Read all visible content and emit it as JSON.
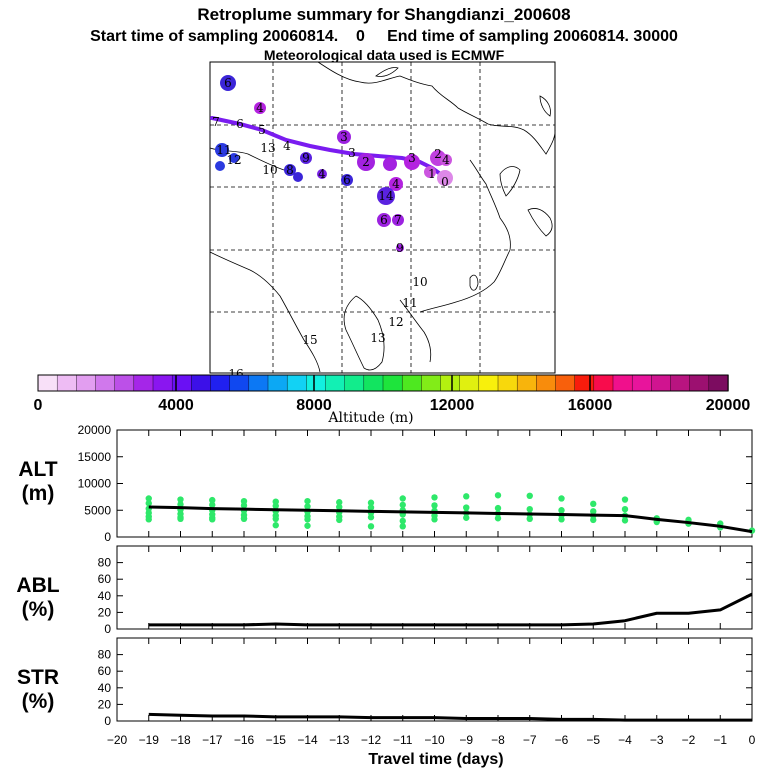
{
  "header": {
    "title": "Retroplume summary for Shangdianzi_200608",
    "subtitle": "Start time of sampling 20060814.    0     End time of sampling 20060814. 30000",
    "met_line": "Meteorological data used is ECMWF"
  },
  "map": {
    "colors": {
      "trajectory": "#7a1cf0",
      "coast": "#000000",
      "grid": "#000000"
    },
    "labels": [
      {
        "t": "6",
        "c": "#3b25d8"
      },
      {
        "t": "4",
        "c": "#b422e0"
      },
      {
        "t": "7",
        "c": "#3b25d8"
      },
      {
        "t": "6",
        "c": "#5a22e0"
      },
      {
        "t": "5",
        "c": "#7a22e8"
      },
      {
        "t": "4",
        "c": "#7a1cf0"
      },
      {
        "t": "3",
        "c": "#9c22e0"
      },
      {
        "t": "11",
        "c": "#2b3ae0"
      },
      {
        "t": "12",
        "c": "#2b3ae0"
      },
      {
        "t": "13",
        "c": "#2b3ae0"
      },
      {
        "t": "9",
        "c": "#5a22e0"
      },
      {
        "t": "3",
        "c": "#9c22e0"
      },
      {
        "t": "2",
        "c": "#a322e0"
      },
      {
        "t": "3",
        "c": "#b422e0"
      },
      {
        "t": "2",
        "c": "#c040e0"
      },
      {
        "t": "1",
        "c": "#cc55e0"
      },
      {
        "t": "0",
        "c": "#dd88e8"
      },
      {
        "t": "4",
        "c": "#b422e0"
      },
      {
        "t": "10",
        "c": "#2b3ae0"
      },
      {
        "t": "8",
        "c": "#3b25d8"
      },
      {
        "t": "4",
        "c": "#7a22e8"
      },
      {
        "t": "6",
        "c": "#3b25d8"
      },
      {
        "t": "14",
        "c": "#5a22e0"
      },
      {
        "t": "4",
        "c": "#b422e0"
      },
      {
        "t": "6",
        "c": "#9c22e0"
      },
      {
        "t": "7",
        "c": "#9c22e0"
      },
      {
        "t": "9",
        "c": "#9c22e0"
      },
      {
        "t": "10",
        "c": "#c040e0"
      },
      {
        "t": "11",
        "c": "#c040e0"
      },
      {
        "t": "12",
        "c": "#c040e0"
      },
      {
        "t": "13",
        "c": "#c040e0"
      },
      {
        "t": "15",
        "c": "#c040e0"
      },
      {
        "t": "16",
        "c": "#c040e0"
      }
    ]
  },
  "colorbar": {
    "label": "Altitude (m)",
    "ticks": [
      "0",
      "4000",
      "8000",
      "12000",
      "16000",
      "20000"
    ],
    "colors": [
      "#f8e0f8",
      "#eebcf4",
      "#e29ef0",
      "#d078ec",
      "#bc50e8",
      "#a526e8",
      "#8a16f0",
      "#6a10f4",
      "#3c10e8",
      "#2020f0",
      "#1048f0",
      "#0c78f4",
      "#0ca8f4",
      "#12d2f4",
      "#12f0e0",
      "#12f0b4",
      "#12ec8c",
      "#12e460",
      "#1ee43c",
      "#4ee820",
      "#82ec18",
      "#b4f010",
      "#e0f010",
      "#f8f00c",
      "#f8d80c",
      "#f8b40c",
      "#f88c0c",
      "#f8600c",
      "#f81c0c",
      "#f80c4c",
      "#f0108c",
      "#e8149c",
      "#d01490",
      "#b81480",
      "#9c1070",
      "#7c0c60"
    ]
  },
  "chart_data": [
    {
      "type": "line",
      "title": "ALT (m)",
      "title_lines": [
        "ALT",
        "(m)"
      ],
      "x": [
        -19,
        -18,
        -17,
        -16,
        -15,
        -14,
        -13,
        -12,
        -11,
        -10,
        -9,
        -8,
        -7,
        -6,
        -5,
        -4,
        -3,
        -2,
        -1,
        0
      ],
      "xlim": [
        -20,
        0
      ],
      "ylim": [
        0,
        20000
      ],
      "yticks": [
        "0",
        "5000",
        "10000",
        "15000",
        "20000"
      ],
      "series": [
        {
          "name": "mean altitude",
          "color": "#000000",
          "values": [
            5600,
            5500,
            5300,
            5200,
            5100,
            5000,
            4900,
            4800,
            4700,
            4600,
            4500,
            4400,
            4300,
            4200,
            4100,
            4000,
            3300,
            2700,
            2000,
            1000
          ]
        }
      ],
      "scatter": {
        "color": "#2ee86a",
        "points": [
          [
            -19,
            7200
          ],
          [
            -19,
            6300
          ],
          [
            -19,
            5300
          ],
          [
            -19,
            4500
          ],
          [
            -19,
            3800
          ],
          [
            -19,
            3300
          ],
          [
            -18,
            7000
          ],
          [
            -18,
            6100
          ],
          [
            -18,
            5100
          ],
          [
            -18,
            4300
          ],
          [
            -18,
            3700
          ],
          [
            -18,
            3400
          ],
          [
            -17,
            6900
          ],
          [
            -17,
            6000
          ],
          [
            -17,
            5000
          ],
          [
            -17,
            4200
          ],
          [
            -17,
            3600
          ],
          [
            -17,
            3300
          ],
          [
            -16,
            6700
          ],
          [
            -16,
            5900
          ],
          [
            -16,
            4900
          ],
          [
            -16,
            4100
          ],
          [
            -16,
            3500
          ],
          [
            -16,
            3400
          ],
          [
            -15,
            6600
          ],
          [
            -15,
            5800
          ],
          [
            -15,
            4800
          ],
          [
            -15,
            4000
          ],
          [
            -15,
            3400
          ],
          [
            -15,
            2200
          ],
          [
            -14,
            6700
          ],
          [
            -14,
            5700
          ],
          [
            -14,
            4700
          ],
          [
            -14,
            3900
          ],
          [
            -14,
            3300
          ],
          [
            -14,
            2100
          ],
          [
            -13,
            6500
          ],
          [
            -13,
            5600
          ],
          [
            -13,
            4600
          ],
          [
            -13,
            3800
          ],
          [
            -13,
            3200
          ],
          [
            -12,
            6400
          ],
          [
            -12,
            5500
          ],
          [
            -12,
            4500
          ],
          [
            -12,
            3700
          ],
          [
            -12,
            2000
          ],
          [
            -11,
            7200
          ],
          [
            -11,
            6000
          ],
          [
            -11,
            5000
          ],
          [
            -11,
            4200
          ],
          [
            -11,
            3000
          ],
          [
            -11,
            2000
          ],
          [
            -10,
            7400
          ],
          [
            -10,
            5900
          ],
          [
            -10,
            4900
          ],
          [
            -10,
            4000
          ],
          [
            -10,
            3300
          ],
          [
            -9,
            7600
          ],
          [
            -9,
            5500
          ],
          [
            -9,
            4500
          ],
          [
            -9,
            3600
          ],
          [
            -8,
            7800
          ],
          [
            -8,
            5400
          ],
          [
            -8,
            4400
          ],
          [
            -8,
            3500
          ],
          [
            -7,
            7700
          ],
          [
            -7,
            5200
          ],
          [
            -7,
            4200
          ],
          [
            -7,
            3400
          ],
          [
            -6,
            7200
          ],
          [
            -6,
            5000
          ],
          [
            -6,
            4100
          ],
          [
            -6,
            3300
          ],
          [
            -5,
            6200
          ],
          [
            -5,
            4800
          ],
          [
            -5,
            4000
          ],
          [
            -5,
            3200
          ],
          [
            -4,
            7000
          ],
          [
            -4,
            5200
          ],
          [
            -4,
            4000
          ],
          [
            -4,
            3100
          ],
          [
            -3,
            3500
          ],
          [
            -3,
            2800
          ],
          [
            -2,
            3200
          ],
          [
            -2,
            2500
          ],
          [
            -1,
            2500
          ],
          [
            -1,
            1800
          ],
          [
            0,
            1200
          ]
        ]
      }
    },
    {
      "type": "line",
      "title": "ABL (%)",
      "title_lines": [
        "ABL",
        "(%)"
      ],
      "x": [
        -19,
        -18,
        -17,
        -16,
        -15,
        -14,
        -13,
        -12,
        -11,
        -10,
        -9,
        -8,
        -7,
        -6,
        -5,
        -4,
        -3,
        -2,
        -1,
        0
      ],
      "xlim": [
        -20,
        0
      ],
      "ylim": [
        0,
        100
      ],
      "yticks": [
        "0",
        "20",
        "40",
        "60",
        "80"
      ],
      "series": [
        {
          "name": "ABL fraction",
          "color": "#000000",
          "values": [
            5,
            5,
            5,
            5,
            6,
            5,
            5,
            5,
            5,
            5,
            5,
            5,
            5,
            5,
            6,
            10,
            19,
            19,
            23,
            42
          ]
        }
      ]
    },
    {
      "type": "line",
      "title": "STR (%)",
      "title_lines": [
        "STR",
        "(%)"
      ],
      "x": [
        -19,
        -18,
        -17,
        -16,
        -15,
        -14,
        -13,
        -12,
        -11,
        -10,
        -9,
        -8,
        -7,
        -6,
        -5,
        -4,
        -3,
        -2,
        -1,
        0
      ],
      "xlim": [
        -20,
        0
      ],
      "ylim": [
        0,
        100
      ],
      "yticks": [
        "0",
        "20",
        "40",
        "60",
        "80"
      ],
      "series": [
        {
          "name": "STR fraction",
          "color": "#000000",
          "values": [
            8,
            7,
            6,
            6,
            5,
            5,
            5,
            4,
            4,
            4,
            3,
            3,
            3,
            2,
            2,
            1,
            1,
            1,
            1,
            1
          ]
        }
      ]
    }
  ],
  "xaxis": {
    "label": "Travel time (days)",
    "ticks": [
      "−20",
      "−19",
      "−18",
      "−17",
      "−16",
      "−15",
      "−14",
      "−13",
      "−12",
      "−11",
      "−10",
      "−9",
      "−8",
      "−7",
      "−6",
      "−5",
      "−4",
      "−3",
      "−2",
      "−1",
      "0"
    ]
  }
}
